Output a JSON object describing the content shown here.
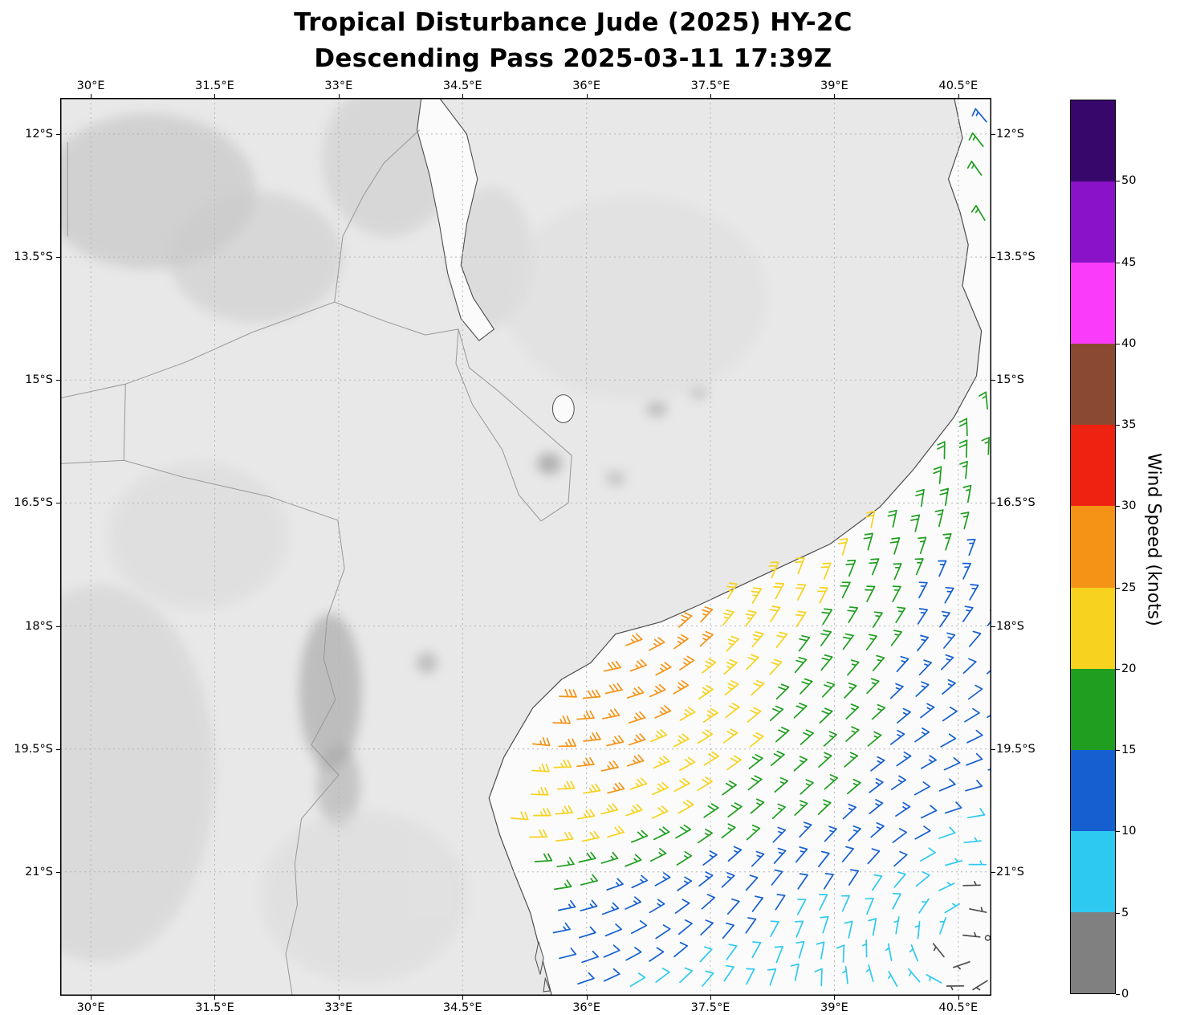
{
  "title": {
    "line1": "Tropical Disturbance Jude (2025) HY-2C",
    "line2": "Descending Pass 2025-03-11 17:39Z"
  },
  "chart_data": {
    "type": "map-windbarb",
    "title": "Tropical Disturbance Jude (2025) HY-2C",
    "subtitle": "Descending Pass 2025-03-11 17:39Z",
    "axes": {
      "lon_range": [
        29.63,
        40.9
      ],
      "lat_south_range": [
        11.56,
        22.51
      ],
      "lon_ticks": [
        30,
        31.5,
        33,
        34.5,
        36,
        37.5,
        39,
        40.5
      ],
      "lon_tick_labels": [
        "30°E",
        "31.5°E",
        "33°E",
        "34.5°E",
        "36°E",
        "37.5°E",
        "39°E",
        "40.5°E"
      ],
      "lat_ticks": [
        12,
        13.5,
        15,
        16.5,
        18,
        19.5,
        21
      ],
      "lat_tick_labels": [
        "12°S",
        "13.5°S",
        "15°S",
        "16.5°S",
        "18°S",
        "19.5°S",
        "21°S"
      ],
      "grid": "dashed"
    },
    "colorbar": {
      "label": "Wind Speed (knots)",
      "levels": [
        0,
        5,
        10,
        15,
        20,
        25,
        30,
        35,
        40,
        45,
        50,
        55
      ],
      "tick_labels": [
        "0",
        "5",
        "10",
        "15",
        "20",
        "25",
        "30",
        "35",
        "40",
        "45",
        "50"
      ],
      "colors": [
        "#808080",
        "#2ec9f0",
        "#155fd0",
        "#1f9e1f",
        "#f7d21e",
        "#f59316",
        "#ee2211",
        "#8a4a32",
        "#fa3cfa",
        "#8a12c9",
        "#38076b"
      ],
      "calm_barb_color": "#4d4d4d"
    },
    "wind_field": {
      "cyclone_center_lon_lat_south": [
        35.9,
        16.6
      ],
      "anticyclone_center_lon_lat_south": [
        40.55,
        21.85
      ],
      "cyclone_decay_exp": 1.2,
      "anticyclone_decay_exp": 2.0,
      "anticyclone_weight": 0.9,
      "grid_lons": [
        35.5,
        36.25,
        37,
        37.75,
        38.5,
        39.25,
        40,
        40.75
      ],
      "grid_lats_south": [
        15,
        15.75,
        16.5,
        17.25,
        18,
        18.75,
        19.5,
        20.25,
        21,
        21.75,
        22.5
      ],
      "speeds_kt": [
        [
          -1,
          -1,
          -1,
          -1,
          -1,
          -1,
          -1,
          17
        ],
        [
          -1,
          -1,
          -1,
          -1,
          -1,
          -1,
          21,
          18
        ],
        [
          -1,
          -1,
          -1,
          -1,
          -1,
          22,
          20,
          15
        ],
        [
          -1,
          -1,
          -1,
          -1,
          23,
          19,
          16,
          13
        ],
        [
          -1,
          -1,
          27,
          24,
          21,
          18,
          14,
          12
        ],
        [
          -1,
          28,
          26,
          23,
          19,
          17,
          13,
          12
        ],
        [
          25,
          27,
          23,
          21,
          18,
          16,
          13,
          11
        ],
        [
          23,
          25,
          21,
          18,
          16,
          15,
          12,
          9
        ],
        [
          17,
          16,
          15,
          13,
          12,
          11,
          9,
          4
        ],
        [
          13,
          12,
          11,
          11,
          9,
          8,
          7,
          2
        ],
        [
          11,
          10,
          9,
          8,
          8,
          7,
          6,
          4
        ]
      ],
      "barb_spacing_deg": 0.292,
      "swath_min_lon": 35.05,
      "swath_min_lat_south": 15.05,
      "swath_max_lat_south": 22.48,
      "coast_margin_deg": 0.17,
      "extra_barbs": [
        {
          "lon": 40.84,
          "lat_south": 11.85,
          "speed_kt": 13
        },
        {
          "lon": 40.8,
          "lat_south": 12.15,
          "speed_kt": 15
        },
        {
          "lon": 40.78,
          "lat_south": 12.5,
          "speed_kt": 17
        },
        {
          "lon": 40.82,
          "lat_south": 13.05,
          "speed_kt": 17
        }
      ]
    }
  },
  "map": {
    "ocean_color": "#fbfbfb",
    "land_color": "#e8e8e8",
    "coast_color": "#4d4d4d",
    "border_color": "#979797",
    "grid_color": "#b5b5b5",
    "frame_color": "#000000",
    "coastline": [
      [
        40.45,
        11.56
      ],
      [
        40.55,
        12.05
      ],
      [
        40.38,
        12.55
      ],
      [
        40.52,
        12.95
      ],
      [
        40.62,
        13.35
      ],
      [
        40.55,
        13.85
      ],
      [
        40.78,
        14.4
      ],
      [
        40.72,
        14.95
      ],
      [
        40.45,
        15.45
      ],
      [
        39.95,
        16.1
      ],
      [
        39.55,
        16.55
      ],
      [
        38.95,
        17.0
      ],
      [
        38.2,
        17.35
      ],
      [
        37.35,
        17.75
      ],
      [
        36.9,
        17.95
      ],
      [
        36.35,
        18.1
      ],
      [
        36.05,
        18.45
      ],
      [
        35.7,
        18.65
      ],
      [
        35.35,
        19.0
      ],
      [
        35.0,
        19.6
      ],
      [
        34.82,
        20.1
      ],
      [
        34.95,
        20.55
      ],
      [
        35.12,
        21.0
      ],
      [
        35.32,
        21.5
      ],
      [
        35.45,
        22.0
      ],
      [
        35.58,
        22.51
      ]
    ],
    "lake_malawi": [
      [
        34.22,
        11.56
      ],
      [
        34.55,
        12.0
      ],
      [
        34.68,
        12.55
      ],
      [
        34.55,
        13.1
      ],
      [
        34.48,
        13.6
      ],
      [
        34.63,
        14.0
      ],
      [
        34.88,
        14.38
      ],
      [
        34.7,
        14.52
      ],
      [
        34.48,
        14.25
      ],
      [
        34.32,
        13.7
      ],
      [
        34.22,
        13.1
      ],
      [
        34.1,
        12.5
      ],
      [
        33.95,
        11.95
      ],
      [
        34.0,
        11.56
      ]
    ],
    "small_lakes": [
      {
        "lon": 35.72,
        "lat_south": 15.35,
        "rx": 0.13,
        "ry": 0.17
      }
    ],
    "islands": [
      [
        [
          35.42,
          21.85
        ],
        [
          35.48,
          22.05
        ],
        [
          35.44,
          22.25
        ],
        [
          35.38,
          22.05
        ]
      ],
      [
        [
          35.5,
          22.3
        ],
        [
          35.56,
          22.45
        ],
        [
          35.48,
          22.46
        ]
      ]
    ],
    "borders": [
      [
        [
          32.99,
          16.71
        ],
        [
          33.07,
          17.3
        ],
        [
          32.86,
          17.9
        ],
        [
          32.82,
          18.4
        ],
        [
          32.96,
          18.9
        ],
        [
          32.67,
          19.45
        ],
        [
          33.0,
          19.82
        ],
        [
          32.55,
          20.35
        ],
        [
          32.47,
          20.9
        ],
        [
          32.5,
          21.4
        ],
        [
          32.36,
          22.0
        ],
        [
          32.44,
          22.51
        ]
      ],
      [
        [
          29.63,
          15.22
        ],
        [
          30.42,
          15.05
        ],
        [
          31.15,
          14.78
        ],
        [
          31.95,
          14.42
        ],
        [
          32.95,
          14.05
        ],
        [
          33.55,
          14.28
        ],
        [
          34.05,
          14.45
        ],
        [
          34.45,
          14.38
        ]
      ],
      [
        [
          30.42,
          15.05
        ],
        [
          30.4,
          15.98
        ]
      ],
      [
        [
          29.63,
          16.02
        ],
        [
          30.4,
          15.98
        ],
        [
          31.1,
          16.18
        ],
        [
          32.15,
          16.42
        ],
        [
          32.99,
          16.71
        ]
      ],
      [
        [
          33.98,
          11.95
        ],
        [
          33.55,
          12.35
        ],
        [
          33.3,
          12.75
        ],
        [
          33.05,
          13.25
        ],
        [
          32.95,
          14.05
        ]
      ],
      [
        [
          34.45,
          14.38
        ],
        [
          34.58,
          14.85
        ],
        [
          34.95,
          15.15
        ],
        [
          35.4,
          15.55
        ],
        [
          35.82,
          15.92
        ],
        [
          35.78,
          16.5
        ],
        [
          35.45,
          16.72
        ],
        [
          35.18,
          16.4
        ],
        [
          34.98,
          15.85
        ],
        [
          34.62,
          15.3
        ],
        [
          34.42,
          14.8
        ],
        [
          34.45,
          14.38
        ]
      ],
      [
        [
          29.72,
          12.1
        ],
        [
          29.72,
          13.25
        ]
      ]
    ],
    "terrain_spots": [
      {
        "lon": 32.9,
        "lat_south": 18.8,
        "rx": 0.38,
        "ry": 0.95,
        "color": "#9b9b9b",
        "opacity": 0.55
      },
      {
        "lon": 33.0,
        "lat_south": 19.95,
        "rx": 0.26,
        "ry": 0.5,
        "color": "#a3a3a3",
        "opacity": 0.5
      },
      {
        "lon": 30.7,
        "lat_south": 12.7,
        "rx": 1.3,
        "ry": 0.95,
        "color": "#c3c3c3",
        "opacity": 0.6
      },
      {
        "lon": 32.0,
        "lat_south": 13.5,
        "rx": 1.05,
        "ry": 0.8,
        "color": "#cacaca",
        "opacity": 0.55
      },
      {
        "lon": 33.6,
        "lat_south": 12.3,
        "rx": 0.8,
        "ry": 0.95,
        "color": "#c7c7c7",
        "opacity": 0.5
      },
      {
        "lon": 30.1,
        "lat_south": 19.8,
        "rx": 1.4,
        "ry": 2.3,
        "color": "#d2d2d2",
        "opacity": 0.6
      },
      {
        "lon": 35.55,
        "lat_south": 16.02,
        "rx": 0.15,
        "ry": 0.13,
        "color": "#8d8d8d",
        "opacity": 0.6
      },
      {
        "lon": 36.85,
        "lat_south": 15.35,
        "rx": 0.13,
        "ry": 0.1,
        "color": "#9d9d9d",
        "opacity": 0.55
      },
      {
        "lon": 37.35,
        "lat_south": 15.15,
        "rx": 0.1,
        "ry": 0.09,
        "color": "#a3a3a3",
        "opacity": 0.5
      },
      {
        "lon": 34.85,
        "lat_south": 13.5,
        "rx": 0.5,
        "ry": 0.85,
        "color": "#cecece",
        "opacity": 0.45
      },
      {
        "lon": 31.3,
        "lat_south": 16.9,
        "rx": 1.1,
        "ry": 0.9,
        "color": "#d8d8d8",
        "opacity": 0.5
      },
      {
        "lon": 33.3,
        "lat_south": 21.3,
        "rx": 1.25,
        "ry": 1.05,
        "color": "#d9d9d9",
        "opacity": 0.5
      },
      {
        "lon": 36.6,
        "lat_south": 14.0,
        "rx": 1.6,
        "ry": 1.25,
        "color": "#dedede",
        "opacity": 0.55
      },
      {
        "lon": 34.07,
        "lat_south": 18.45,
        "rx": 0.13,
        "ry": 0.13,
        "color": "#9f9f9f",
        "opacity": 0.55
      },
      {
        "lon": 36.35,
        "lat_south": 16.2,
        "rx": 0.12,
        "ry": 0.1,
        "color": "#a8a8a8",
        "opacity": 0.5
      }
    ]
  }
}
